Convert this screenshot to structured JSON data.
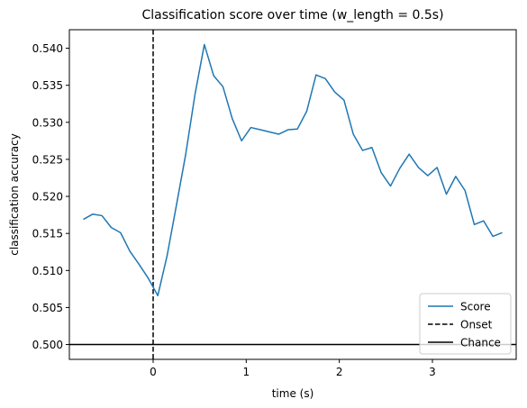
{
  "chart_data": {
    "type": "line",
    "title": "Classification score over time (w_length = 0.5s)",
    "xlabel": "time (s)",
    "ylabel": "classification accuracy",
    "xlim": [
      -0.9,
      3.9
    ],
    "ylim": [
      0.498,
      0.5425
    ],
    "xticks": [
      0,
      1,
      2,
      3
    ],
    "yticks": [
      0.5,
      0.505,
      0.51,
      0.515,
      0.52,
      0.525,
      0.53,
      0.535,
      0.54
    ],
    "xtick_labels": [
      "0",
      "1",
      "2",
      "3"
    ],
    "ytick_labels": [
      "0.500",
      "0.505",
      "0.510",
      "0.515",
      "0.520",
      "0.525",
      "0.530",
      "0.535",
      "0.540"
    ],
    "grid": false,
    "legend_position": "lower-right",
    "series": [
      {
        "name": "Score",
        "color": "#1f77b4",
        "x": [
          -0.75,
          -0.65,
          -0.55,
          -0.45,
          -0.35,
          -0.25,
          -0.15,
          -0.05,
          0.05,
          0.15,
          0.25,
          0.35,
          0.45,
          0.55,
          0.65,
          0.75,
          0.85,
          0.95,
          1.05,
          1.15,
          1.25,
          1.35,
          1.45,
          1.55,
          1.65,
          1.75,
          1.85,
          1.95,
          2.05,
          2.15,
          2.25,
          2.35,
          2.45,
          2.55,
          2.65,
          2.75,
          2.85,
          2.95,
          3.05,
          3.15,
          3.25,
          3.35,
          3.45,
          3.55,
          3.65,
          3.75
        ],
        "y": [
          0.5169,
          0.5176,
          0.5174,
          0.5158,
          0.5151,
          0.5126,
          0.5108,
          0.5089,
          0.5066,
          0.512,
          0.5188,
          0.5257,
          0.5338,
          0.5405,
          0.5363,
          0.5348,
          0.5305,
          0.5275,
          0.5293,
          0.529,
          0.5287,
          0.5284,
          0.529,
          0.5291,
          0.5315,
          0.5364,
          0.5359,
          0.5341,
          0.533,
          0.5284,
          0.5262,
          0.5266,
          0.5232,
          0.5214,
          0.5238,
          0.5257,
          0.5239,
          0.5228,
          0.5239,
          0.5203,
          0.5227,
          0.5208,
          0.5162,
          0.5167,
          0.5146,
          0.5151
        ]
      }
    ],
    "reference_lines": [
      {
        "name": "Onset",
        "orientation": "vertical",
        "value": 0,
        "style": "dashed",
        "color": "#000000"
      },
      {
        "name": "Chance",
        "orientation": "horizontal",
        "value": 0.5,
        "style": "solid",
        "color": "#000000"
      }
    ],
    "legend": [
      "Score",
      "Onset",
      "Chance"
    ]
  }
}
